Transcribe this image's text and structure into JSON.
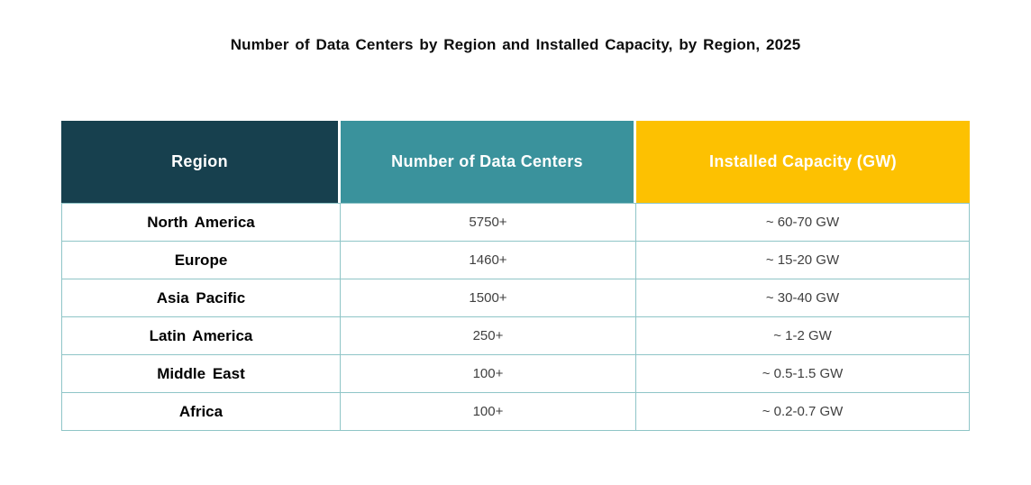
{
  "title": "Number of Data Centers by Region and Installed Capacity, by Region, 2025",
  "chart_data": {
    "type": "table",
    "title": "Number of Data Centers by Region and Installed Capacity, by Region, 2025",
    "columns": [
      "Region",
      "Number of Data Centers",
      "Installed Capacity (GW)"
    ],
    "rows": [
      [
        "North America",
        "5750+",
        "~ 60-70 GW"
      ],
      [
        "Europe",
        "1460+",
        "~ 15-20 GW"
      ],
      [
        "Asia Pacific",
        "1500+",
        "~ 30-40 GW"
      ],
      [
        "Latin America",
        "250+",
        "~ 1-2 GW"
      ],
      [
        "Middle East",
        "100+",
        "~ 0.5-1.5 GW"
      ],
      [
        "Africa",
        "100+",
        "~ 0.2-0.7 GW"
      ]
    ]
  },
  "colors": {
    "header": [
      "#17404e",
      "#3a929c",
      "#fdc101"
    ],
    "grid_line": "#8fc5c7",
    "value_text": "#404040"
  }
}
